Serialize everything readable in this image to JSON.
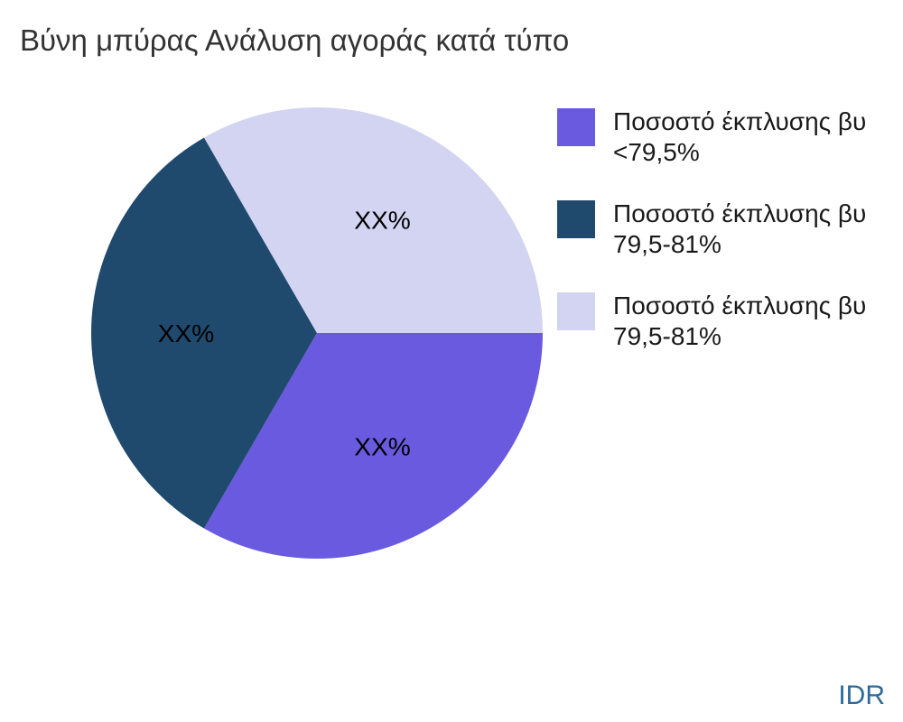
{
  "title": "Βύνη μπύρας Ανάλυση αγοράς κατά τύπο",
  "watermark": "IDR",
  "colors": {
    "title_text": "#333333",
    "watermark_text": "#2e6b9b",
    "slice_label_text": "#000000"
  },
  "chart_data": {
    "type": "pie",
    "title": "Βύνη μπύρας Ανάλυση αγοράς κατά τύπο",
    "legend_position": "right",
    "start_angle_deg": 0,
    "direction": "clockwise",
    "data_label_placeholder": "XX%",
    "slices": [
      {
        "legend_line1": "Ποσοστό έκπλυσης βυ",
        "legend_line2": "<79,5%",
        "value": 33.33,
        "data_label": "XX%",
        "color": "#6a5ae0"
      },
      {
        "legend_line1": "Ποσοστό έκπλυσης βυ",
        "legend_line2": "79,5-81%",
        "value": 33.33,
        "data_label": "XX%",
        "color": "#1f4a6e"
      },
      {
        "legend_line1": "Ποσοστό έκπλυσης βυ",
        "legend_line2": "79,5-81%",
        "value": 33.33,
        "data_label": "XX%",
        "color": "#d2d4f2"
      }
    ]
  }
}
